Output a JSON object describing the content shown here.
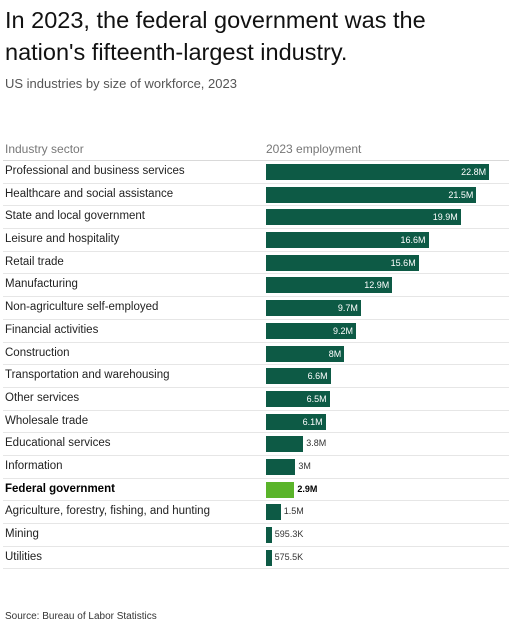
{
  "title": "In 2023, the federal government was the nation's fifteenth-largest industry.",
  "subtitle": "US industries by size of workforce, 2023",
  "source": "Source: Bureau of Labor Statistics",
  "chart_data": {
    "type": "bar",
    "orientation": "horizontal",
    "column_headers": [
      "Industry sector",
      "2023 employment"
    ],
    "unit": "employment",
    "categories": [
      "Professional and business services",
      "Healthcare and social assistance",
      "State and local government",
      "Leisure and hospitality",
      "Retail trade",
      "Manufacturing",
      "Non-agriculture self-employed",
      "Financial activities",
      "Construction",
      "Transportation and warehousing",
      "Other services",
      "Wholesale trade",
      "Educational services",
      "Information",
      "Federal government",
      "Agriculture, forestry, fishing, and hunting",
      "Mining",
      "Utilities"
    ],
    "values": [
      22800000,
      21500000,
      19900000,
      16600000,
      15600000,
      12900000,
      9700000,
      9200000,
      8000000,
      6600000,
      6500000,
      6100000,
      3800000,
      3000000,
      2900000,
      1500000,
      595300,
      575500
    ],
    "value_labels": [
      "22.8M",
      "21.5M",
      "19.9M",
      "16.6M",
      "15.6M",
      "12.9M",
      "9.7M",
      "9.2M",
      "8M",
      "6.6M",
      "6.5M",
      "6.1M",
      "3.8M",
      "3M",
      "2.9M",
      "1.5M",
      "595.3K",
      "575.5K"
    ],
    "highlight": "Federal government",
    "colors": {
      "bar": "#0d5a45",
      "highlight": "#5ab42a"
    },
    "xlim": [
      0,
      23500000
    ],
    "grid": false,
    "legend": "none"
  }
}
